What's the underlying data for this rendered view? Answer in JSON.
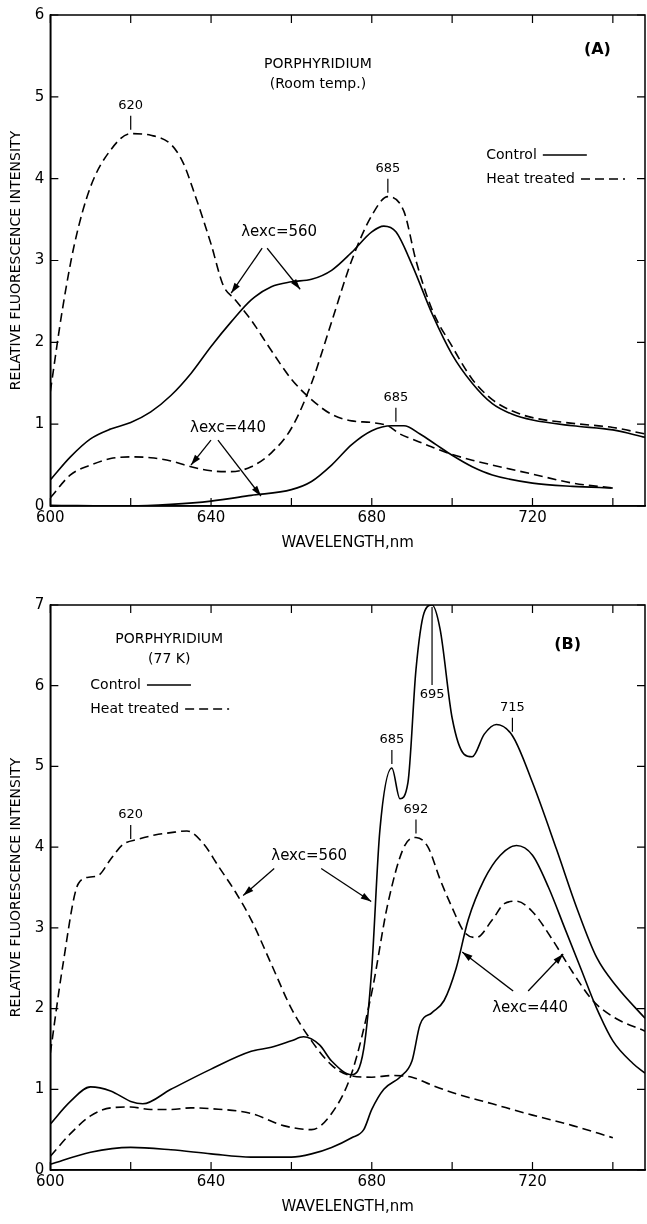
{
  "chart_data": [
    {
      "type": "line",
      "title": "PORPHYRIDIUM",
      "subtitle": "(Room temp.)",
      "xlabel": "WAVELENGTH,nm",
      "ylabel": "RELATIVE FLUORESCENCE INTENSITY",
      "xlim": [
        600,
        748
      ],
      "ylim": [
        0,
        6
      ],
      "xticks": [
        600,
        {
          "value": 620,
          "label": null
        },
        640,
        {
          "value": 660,
          "label": null
        },
        680,
        {
          "value": 700,
          "label": null
        },
        720,
        {
          "value": 740,
          "label": null
        }
      ],
      "yticks": [
        0,
        1,
        2,
        3,
        4,
        5,
        6
      ],
      "legend": "top right",
      "series": [
        {
          "name": "Control",
          "color": "#000000",
          "line_style": "solid",
          "x": [
            600,
            605,
            610,
            615,
            620,
            625,
            630,
            635,
            640,
            645,
            650,
            655,
            660,
            665,
            670,
            675,
            680,
            683,
            686,
            690,
            695,
            700,
            705,
            710,
            715,
            720,
            730,
            740,
            748
          ],
          "values": [
            0.32,
            0.6,
            0.82,
            0.94,
            1.02,
            1.15,
            1.35,
            1.62,
            1.95,
            2.25,
            2.52,
            2.68,
            2.74,
            2.77,
            2.88,
            3.1,
            3.35,
            3.42,
            3.35,
            2.95,
            2.35,
            1.85,
            1.5,
            1.25,
            1.12,
            1.05,
            0.98,
            0.93,
            0.84
          ]
        },
        {
          "name": "Heat treated",
          "color": "#000000",
          "line_style": "dashed",
          "x": [
            600,
            603,
            606,
            610,
            615,
            620,
            625,
            630,
            633,
            636,
            640,
            643,
            646,
            650,
            655,
            660,
            665,
            670,
            675,
            680,
            684,
            687,
            690,
            695,
            700,
            705,
            710,
            720,
            730,
            740
          ],
          "values": [
            1.4,
            2.4,
            3.2,
            3.9,
            4.35,
            4.55,
            4.53,
            4.42,
            4.2,
            3.8,
            3.2,
            2.7,
            2.52,
            2.27,
            1.9,
            1.55,
            1.3,
            1.12,
            1.04,
            1.02,
            0.98,
            0.88,
            0.82,
            0.72,
            0.63,
            0.56,
            0.5,
            0.39,
            0.28,
            0.22
          ]
        },
        {
          "color": "#000000",
          "line_style": "solid",
          "x": [
            600,
            620,
            630,
            640,
            650,
            660,
            665,
            670,
            675,
            680,
            685,
            688,
            692,
            696,
            700,
            705,
            710,
            720,
            730,
            740
          ],
          "values": [
            0.01,
            0.0,
            0.02,
            0.06,
            0.13,
            0.2,
            0.3,
            0.5,
            0.75,
            0.92,
            0.98,
            0.98,
            0.88,
            0.75,
            0.62,
            0.48,
            0.38,
            0.28,
            0.24,
            0.22
          ]
        },
        {
          "color": "#000000",
          "line_style": "dashed",
          "x": [
            600,
            605,
            610,
            615,
            620,
            625,
            630,
            635,
            640,
            645,
            650,
            655,
            660,
            665,
            670,
            675,
            680,
            684,
            688,
            691,
            695,
            700,
            705,
            710,
            715,
            720,
            730,
            740,
            748
          ],
          "values": [
            0.1,
            0.38,
            0.5,
            0.58,
            0.6,
            0.59,
            0.55,
            0.48,
            0.43,
            0.42,
            0.48,
            0.65,
            0.95,
            1.5,
            2.25,
            3.0,
            3.55,
            3.78,
            3.6,
            3.0,
            2.4,
            1.95,
            1.55,
            1.3,
            1.16,
            1.08,
            1.01,
            0.96,
            0.88
          ]
        }
      ],
      "annotations": [
        "(A)",
        {
          "text": "620",
          "x": 620,
          "y": 4.55
        },
        {
          "text": "685",
          "x": 684,
          "y": 3.78
        },
        {
          "text": "685",
          "x": 686,
          "y": 0.98
        },
        {
          "text": "λexc=560",
          "x": 645,
          "y": 2.6
        },
        {
          "text": "λexc=440",
          "x": 635,
          "y": 0.5
        }
      ]
    },
    {
      "type": "line",
      "title": "PORPHYRIDIUM",
      "subtitle": "(77 K)",
      "xlabel": "WAVELENGTH,nm",
      "ylabel": "RELATIVE FLUORESCENCE INTENSITY",
      "xlim": [
        600,
        748
      ],
      "ylim": [
        0,
        7
      ],
      "xticks": [
        600,
        {
          "value": 620,
          "label": null
        },
        640,
        {
          "value": 660,
          "label": null
        },
        680,
        {
          "value": 700,
          "label": null
        },
        720,
        {
          "value": 740,
          "label": null
        }
      ],
      "yticks": [
        0,
        1,
        2,
        3,
        4,
        5,
        6,
        7
      ],
      "legend": "top left",
      "series": [
        {
          "name": "Control",
          "color": "#000000",
          "line_style": "solid",
          "x": [
            600,
            605,
            610,
            615,
            620,
            623,
            630,
            640,
            650,
            655,
            660,
            663,
            667,
            670,
            675,
            678,
            680,
            682,
            685,
            687,
            689,
            691,
            693,
            695,
            697,
            700,
            703,
            705,
            708,
            711,
            715,
            720,
            726,
            731,
            736,
            741,
            748
          ],
          "values": [
            0.57,
            0.85,
            1.03,
            0.98,
            0.85,
            0.82,
            1.0,
            1.25,
            1.47,
            1.52,
            1.6,
            1.65,
            1.55,
            1.35,
            1.18,
            1.5,
            2.5,
            4.2,
            4.98,
            4.6,
            4.8,
            6.2,
            6.9,
            7.0,
            6.7,
            5.6,
            5.15,
            5.12,
            5.4,
            5.52,
            5.38,
            4.8,
            3.97,
            3.25,
            2.63,
            2.27,
            1.88
          ]
        },
        {
          "name": "Heat treated",
          "color": "#000000",
          "line_style": "dashed",
          "x": [
            600,
            603,
            607,
            610,
            612,
            615,
            618,
            622,
            626,
            630,
            634,
            638,
            642,
            646,
            650,
            655,
            660,
            665,
            670,
            674,
            680,
            685,
            690,
            695,
            700,
            710,
            720,
            730,
            740
          ],
          "values": [
            1.45,
            2.5,
            3.55,
            3.63,
            3.65,
            3.85,
            4.03,
            4.1,
            4.15,
            4.18,
            4.2,
            4.05,
            3.75,
            3.45,
            3.1,
            2.55,
            2.0,
            1.6,
            1.3,
            1.18,
            1.15,
            1.17,
            1.15,
            1.05,
            0.96,
            0.82,
            0.68,
            0.55,
            0.4
          ]
        },
        {
          "color": "#000000",
          "line_style": "solid",
          "x": [
            600,
            610,
            620,
            630,
            640,
            650,
            660,
            665,
            670,
            675,
            678,
            680,
            683,
            687,
            690,
            692,
            695,
            698,
            701,
            704,
            708,
            712,
            716,
            720,
            724,
            728,
            732,
            736,
            740,
            745,
            748
          ],
          "values": [
            0.07,
            0.22,
            0.28,
            0.25,
            0.2,
            0.16,
            0.16,
            0.2,
            0.28,
            0.4,
            0.5,
            0.75,
            1.0,
            1.15,
            1.35,
            1.8,
            1.95,
            2.1,
            2.5,
            3.1,
            3.6,
            3.9,
            4.02,
            3.9,
            3.5,
            3.0,
            2.5,
            2.0,
            1.6,
            1.32,
            1.2
          ]
        },
        {
          "color": "#000000",
          "line_style": "dashed",
          "x": [
            600,
            605,
            610,
            615,
            620,
            625,
            630,
            635,
            640,
            650,
            658,
            665,
            670,
            675,
            680,
            684,
            688,
            691,
            694,
            697,
            700,
            703,
            706,
            710,
            713,
            716,
            720,
            725,
            730,
            735,
            740,
            748
          ],
          "values": [
            0.17,
            0.45,
            0.67,
            0.77,
            0.78,
            0.75,
            0.75,
            0.77,
            0.76,
            0.7,
            0.55,
            0.5,
            0.7,
            1.2,
            2.2,
            3.3,
            4.0,
            4.12,
            4.0,
            3.6,
            3.25,
            2.95,
            2.88,
            3.1,
            3.3,
            3.33,
            3.2,
            2.85,
            2.45,
            2.1,
            1.9,
            1.72
          ]
        }
      ],
      "annotations": [
        "(B)",
        {
          "text": "620",
          "x": 620,
          "y": 4.05
        },
        {
          "text": "685",
          "x": 685,
          "y": 4.98
        },
        {
          "text": "695",
          "x": 695,
          "y": 7.0
        },
        {
          "text": "715",
          "x": 715,
          "y": 5.38
        },
        {
          "text": "692",
          "x": 691,
          "y": 4.12
        },
        {
          "text": "λexc=560",
          "x": 648,
          "y": 3.4
        },
        {
          "text": "λexc=440",
          "x": 702.5,
          "y": 2.7
        }
      ]
    }
  ]
}
